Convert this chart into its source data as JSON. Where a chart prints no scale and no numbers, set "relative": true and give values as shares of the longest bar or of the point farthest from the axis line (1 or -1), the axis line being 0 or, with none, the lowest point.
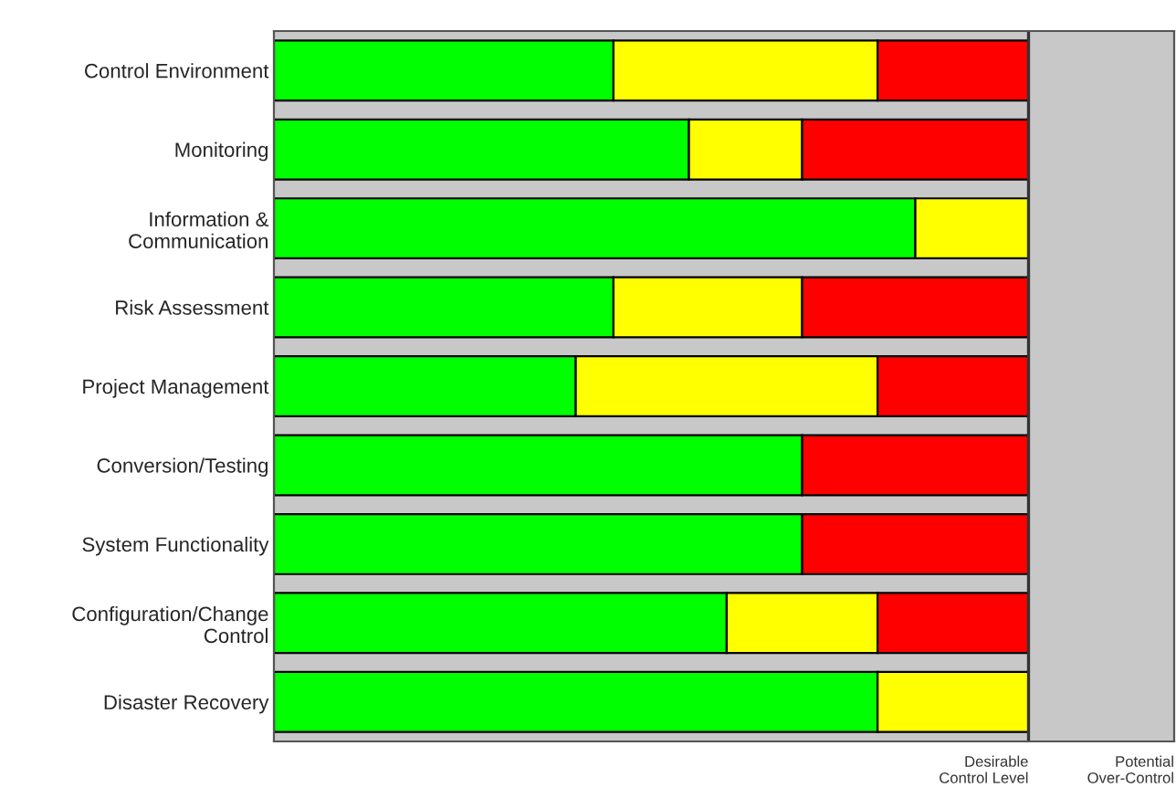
{
  "chart_data": {
    "type": "bar",
    "orientation": "horizontal",
    "stacked": true,
    "relative": true,
    "categories": [
      "Control Environment",
      "Monitoring",
      "Information &\nCommunication",
      "Risk Assessment",
      "Project Management",
      "Conversion/Testing",
      "System Functionality",
      "Configuration/Change\nControl",
      "Disaster Recovery"
    ],
    "series": [
      {
        "color": "#00ff00",
        "values": [
          0.45,
          0.55,
          0.85,
          0.45,
          0.4,
          0.7,
          0.7,
          0.6,
          0.8
        ]
      },
      {
        "color": "#ffff00",
        "values": [
          0.35,
          0.15,
          0.15,
          0.25,
          0.4,
          0,
          0,
          0.2,
          0.2
        ]
      },
      {
        "color": "#ff0000",
        "values": [
          0.2,
          0.3,
          0,
          0.3,
          0.2,
          0.3,
          0.3,
          0.2,
          0
        ]
      }
    ],
    "ref_lines": [
      {
        "axis": "x",
        "value": 1,
        "label": "Desirable\nControl Level",
        "color": "#333333"
      }
    ],
    "annotations": [
      "Potential\nOver-Control"
    ],
    "legend": false
  }
}
